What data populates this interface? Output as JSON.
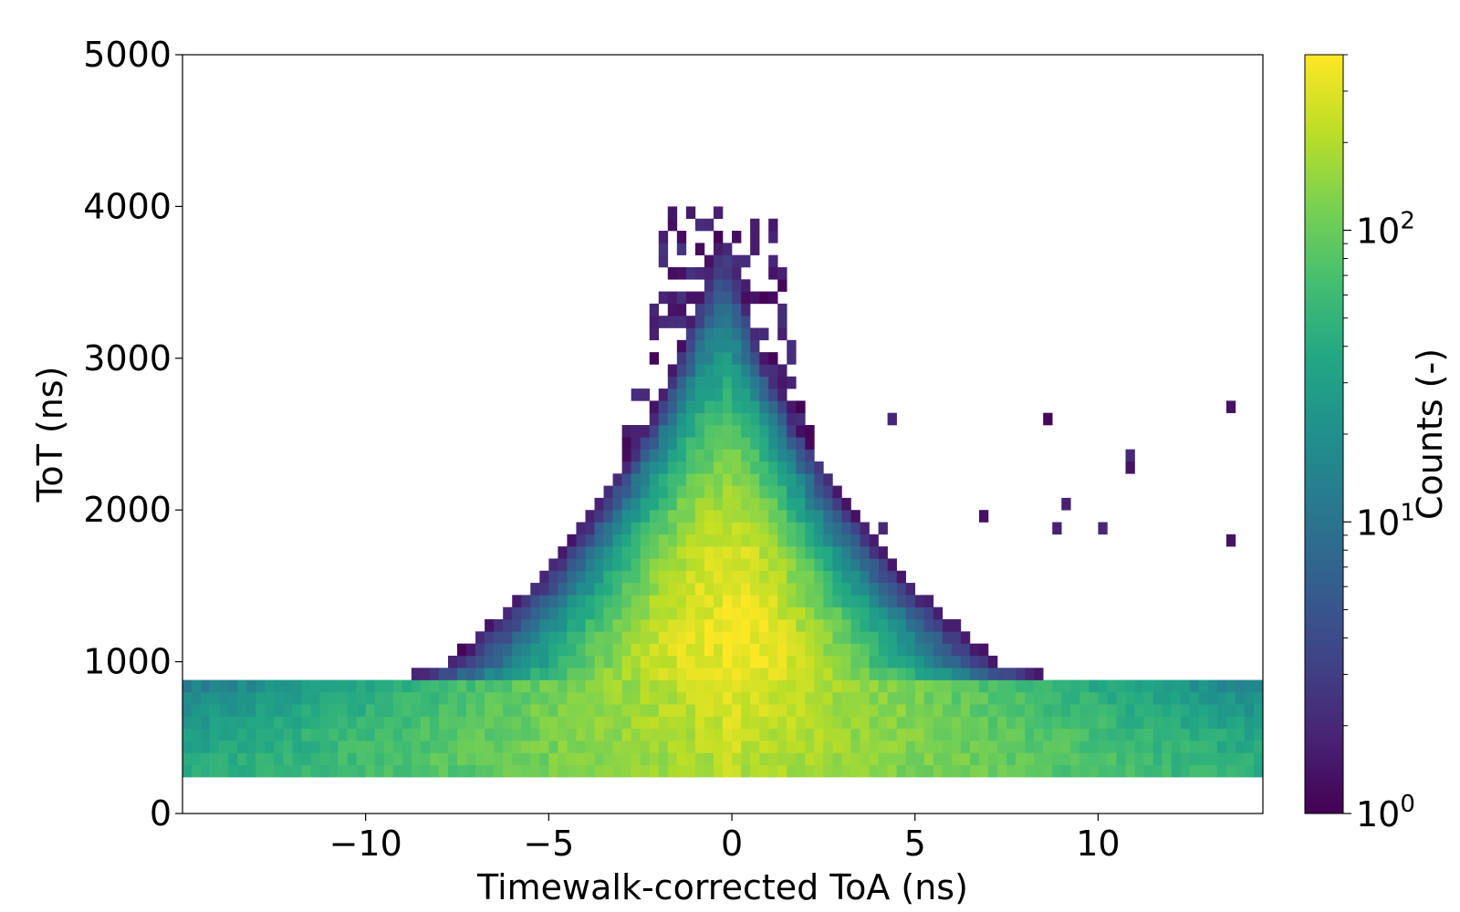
{
  "chart_data": {
    "type": "heatmap",
    "xlabel": "Timewalk-corrected ToA (ns)",
    "ylabel": "ToT (ns)",
    "xlim": [
      -15,
      14.5
    ],
    "ylim": [
      0,
      5000
    ],
    "x_ticks": [
      -10,
      -5,
      0,
      5,
      10
    ],
    "x_tick_labels": [
      "−10",
      "−5",
      "0",
      "5",
      "10"
    ],
    "y_ticks": [
      0,
      1000,
      2000,
      3000,
      4000,
      5000
    ],
    "y_tick_labels": [
      "0",
      "1000",
      "2000",
      "3000",
      "4000",
      "5000"
    ],
    "colorbar": {
      "label": "Counts (-)",
      "scale": "log",
      "range": [
        1,
        400
      ],
      "colormap": "viridis",
      "ticks": [
        1,
        10,
        100
      ],
      "tick_labels": [
        {
          "base": "10",
          "exp": "0"
        },
        {
          "base": "10",
          "exp": "1"
        },
        {
          "base": "10",
          "exp": "2"
        }
      ]
    },
    "bins": {
      "x_width_ns": 0.25,
      "y_height_ns": 80
    },
    "distribution": {
      "description_values": "peak near ToA -0.3 ns, ToT ~1100 ns, peak count ~400",
      "core_ridge": [
        {
          "tot": 300,
          "toa_center": -0.3,
          "half_width": 10.0
        },
        {
          "tot": 600,
          "toa_center": -0.3,
          "half_width": 7.0
        },
        {
          "tot": 1000,
          "toa_center": -0.3,
          "half_width": 4.0
        },
        {
          "tot": 1500,
          "toa_center": -0.3,
          "half_width": 2.8
        },
        {
          "tot": 2000,
          "toa_center": -0.2,
          "half_width": 2.0
        },
        {
          "tot": 2500,
          "toa_center": -0.1,
          "half_width": 1.4
        },
        {
          "tot": 3000,
          "toa_center": -0.1,
          "half_width": 0.9
        },
        {
          "tot": 3500,
          "toa_center": -0.1,
          "half_width": 0.6
        },
        {
          "tot": 3950,
          "toa_center": 0.0,
          "half_width": 0.3
        }
      ]
    }
  }
}
